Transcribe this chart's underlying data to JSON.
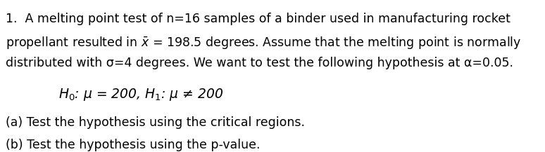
{
  "background_color": "#ffffff",
  "text_color": "#000000",
  "line1": "1.  A melting point test of n=16 samples of a binder used in manufacturing rocket",
  "line2": "propellant resulted in $\\bar{x}$ = 198.5 degrees. Assume that the melting point is normally",
  "line3": "distributed with σ=4 degrees. We want to test the following hypothesis at α=0.05.",
  "hypothesis": "$H_0$: μ = 200, $H_1$: μ ≠ 200",
  "part_a": "(a) Test the hypothesis using the critical regions.",
  "part_b": "(b) Test the hypothesis using the p-value.",
  "font_size_body": 12.5,
  "font_size_hyp": 13.5,
  "fig_width": 7.74,
  "fig_height": 2.17,
  "dpi": 100
}
